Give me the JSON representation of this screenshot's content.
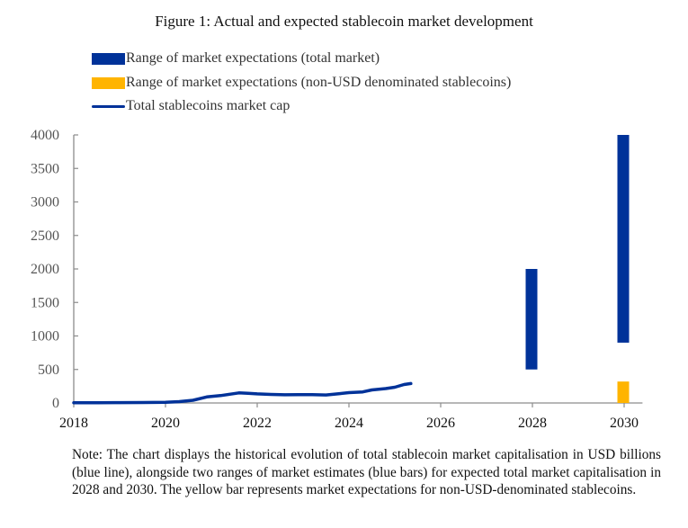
{
  "figure": {
    "title": "Figure 1: Actual and expected stablecoin market development",
    "note": "Note: The chart displays the historical evolution of total stablecoin market capitalisation in USD billions (blue line), alongside two ranges of market estimates (blue bars) for expected total market capitalisation in 2028 and 2030. The yellow bar represents market expectations for non-USD-denominated stablecoins."
  },
  "colors": {
    "navy": "#003299",
    "yellow": "#FFB400",
    "axis": "#8c8c8c",
    "tick_text_y": "#555555",
    "tick_text_x": "#111111"
  },
  "chart_data": {
    "type": "line",
    "title": "Figure 1: Actual and expected stablecoin market development",
    "xlabel": "",
    "ylabel": "",
    "units": "USD billions",
    "xlim": [
      2018,
      2030.4
    ],
    "ylim": [
      0,
      4000
    ],
    "grid": false,
    "legend_position": "top-left",
    "x_ticks": [
      2018,
      2020,
      2022,
      2024,
      2026,
      2028,
      2030
    ],
    "x_tick_labels": [
      "2018",
      "2020",
      "2022",
      "2024",
      "2026",
      "2028",
      "2030"
    ],
    "y_ticks": [
      0,
      500,
      1000,
      1500,
      2000,
      2500,
      3000,
      3500,
      4000
    ],
    "y_tick_labels": [
      "0",
      "500",
      "1000",
      "1500",
      "2000",
      "2500",
      "3000",
      "3500",
      "4000"
    ],
    "legend": [
      {
        "label": "Range of market expectations (total market)",
        "kind": "bar",
        "color": "#003299"
      },
      {
        "label": "Range of market expectations (non-USD denominated stablecoins)",
        "kind": "bar",
        "color": "#FFB400"
      },
      {
        "label": "Total stablecoins market cap",
        "kind": "line",
        "color": "#003299"
      }
    ],
    "series": [
      {
        "name": "Total stablecoins market cap",
        "type": "line",
        "color": "#003299",
        "x": [
          2018.0,
          2018.5,
          2019.0,
          2019.5,
          2020.0,
          2020.3,
          2020.6,
          2020.9,
          2021.2,
          2021.4,
          2021.6,
          2021.8,
          2022.0,
          2022.3,
          2022.6,
          2022.9,
          2023.2,
          2023.5,
          2023.8,
          2024.0,
          2024.3,
          2024.5,
          2024.8,
          2025.0,
          2025.2,
          2025.35
        ],
        "y": [
          3,
          4,
          5,
          7,
          10,
          20,
          40,
          90,
          110,
          130,
          150,
          145,
          135,
          128,
          122,
          125,
          123,
          120,
          140,
          155,
          165,
          195,
          215,
          235,
          275,
          290
        ]
      }
    ],
    "ranges": [
      {
        "name": "Range of market expectations (total market)",
        "x": 2028,
        "low": 500,
        "high": 2000,
        "color": "#003299"
      },
      {
        "name": "Range of market expectations (total market)",
        "x": 2030,
        "low": 900,
        "high": 4000,
        "color": "#003299"
      },
      {
        "name": "Range of market expectations (non-USD denominated stablecoins)",
        "x": 2030,
        "low": 0,
        "high": 320,
        "color": "#FFB400"
      }
    ]
  }
}
